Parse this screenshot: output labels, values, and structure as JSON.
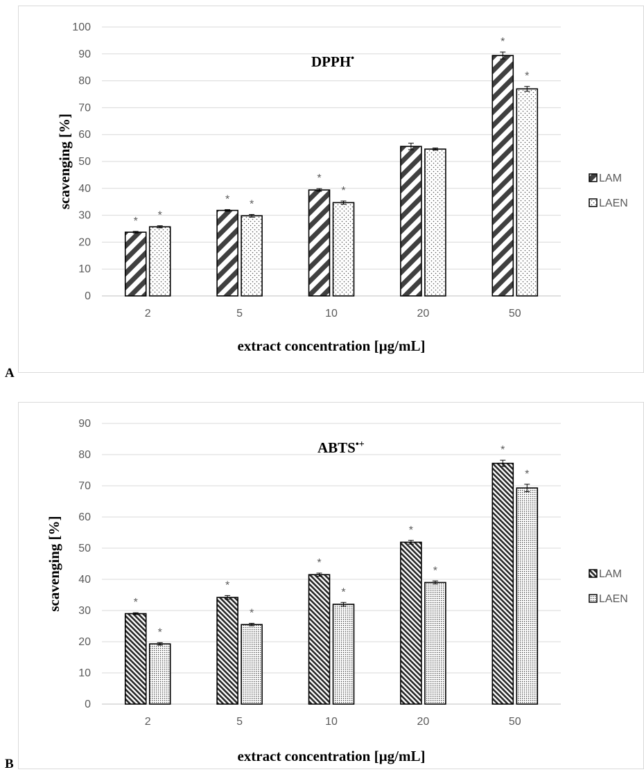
{
  "panels": [
    {
      "letter": "A"
    },
    {
      "letter": "B"
    }
  ],
  "chart_data": [
    {
      "type": "bar",
      "title": "DPPH",
      "title_superscript": "•",
      "xlabel": "extract concentration [µg/mL]",
      "ylabel": "scavenging [%]",
      "ylim": [
        0,
        100
      ],
      "yticks": [
        0,
        10,
        20,
        30,
        40,
        50,
        60,
        70,
        80,
        90,
        100
      ],
      "grid": true,
      "legend_position": "right",
      "categories": [
        "2",
        "5",
        "10",
        "20",
        "50"
      ],
      "series": [
        {
          "name": "LAM",
          "pattern": "wide-diagonal",
          "values": [
            23.7,
            31.8,
            39.4,
            55.6,
            89.4
          ],
          "errors": [
            0.3,
            0.3,
            0.5,
            1.2,
            1.3
          ],
          "significant": [
            true,
            true,
            true,
            false,
            true
          ]
        },
        {
          "name": "LAEN",
          "pattern": "dots",
          "values": [
            25.7,
            29.8,
            34.7,
            54.6,
            77.0
          ],
          "errors": [
            0.4,
            0.5,
            0.6,
            0.4,
            0.9
          ],
          "significant": [
            true,
            true,
            true,
            false,
            true
          ]
        }
      ],
      "significance_marker": "*"
    },
    {
      "type": "bar",
      "title": "ABTS",
      "title_superscript": "•+",
      "xlabel": "extract concentration [µg/mL]",
      "ylabel": "scavenging [%]",
      "ylim": [
        0,
        90
      ],
      "yticks": [
        0,
        10,
        20,
        30,
        40,
        50,
        60,
        70,
        80,
        90
      ],
      "grid": true,
      "legend_position": "right",
      "categories": [
        "2",
        "5",
        "10",
        "20",
        "50"
      ],
      "series": [
        {
          "name": "LAM",
          "pattern": "dense-diagonal",
          "values": [
            29.0,
            34.2,
            41.5,
            51.9,
            77.2
          ],
          "errors": [
            0.3,
            0.6,
            0.5,
            0.6,
            1.0
          ],
          "significant": [
            true,
            true,
            true,
            true,
            true
          ]
        },
        {
          "name": "LAEN",
          "pattern": "fine-dots",
          "values": [
            19.3,
            25.5,
            32.0,
            39.0,
            69.3
          ],
          "errors": [
            0.4,
            0.4,
            0.6,
            0.5,
            1.2
          ],
          "significant": [
            true,
            true,
            true,
            true,
            true
          ]
        }
      ],
      "significance_marker": "*"
    }
  ]
}
